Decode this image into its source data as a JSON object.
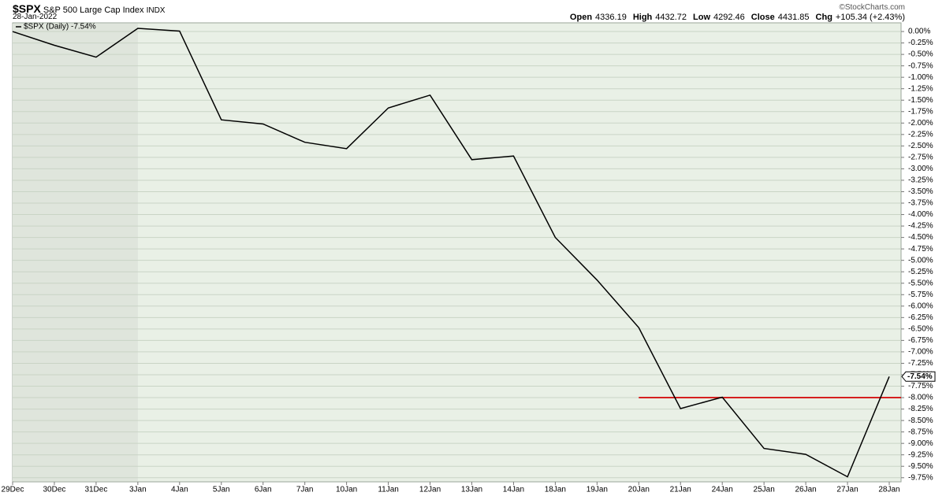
{
  "chart_data": {
    "type": "line",
    "symbol": "$SPX",
    "title": "S&P 500 Large Cap Index",
    "exchange": "INDX",
    "date": "28-Jan-2022",
    "credit": "©StockCharts.com",
    "quote": [
      {
        "label": "Open",
        "value": "4336.19"
      },
      {
        "label": "High",
        "value": "4432.72"
      },
      {
        "label": "Low",
        "value": "4292.46"
      },
      {
        "label": "Close",
        "value": "4431.85"
      },
      {
        "label": "Chg",
        "value": "+105.34 (+2.43%)"
      }
    ],
    "categories": [
      "29Dec",
      "30Dec",
      "31Dec",
      "3Jan",
      "4Jan",
      "5Jan",
      "6Jan",
      "7Jan",
      "10Jan",
      "11Jan",
      "12Jan",
      "13Jan",
      "14Jan",
      "18Jan",
      "19Jan",
      "20Jan",
      "21Jan",
      "24Jan",
      "25Jan",
      "26Jan",
      "27Jan",
      "28Jan"
    ],
    "series": [
      {
        "name": "$SPX (Daily) -7.54%",
        "color": "#000000",
        "values": [
          0.0,
          -0.3,
          -0.56,
          0.07,
          0.01,
          -1.93,
          -2.02,
          -2.42,
          -2.56,
          -1.67,
          -1.39,
          -2.8,
          -2.72,
          -4.5,
          -5.43,
          -6.47,
          -8.24,
          -7.99,
          -9.11,
          -9.24,
          -9.73,
          -7.54
        ],
        "last_value_label": "-7.54%"
      }
    ],
    "hline": {
      "value": -8.0,
      "color": "#d62020"
    },
    "ylim": [
      -9.84,
      0.19
    ],
    "yticks": [
      {
        "value": 0,
        "label": "0.00%"
      },
      {
        "value": -0.25,
        "label": "-0.25%"
      },
      {
        "value": -0.5,
        "label": "-0.50%"
      },
      {
        "value": -0.75,
        "label": "-0.75%"
      },
      {
        "value": -1,
        "label": "-1.00%"
      },
      {
        "value": -1.25,
        "label": "-1.25%"
      },
      {
        "value": -1.5,
        "label": "-1.50%"
      },
      {
        "value": -1.75,
        "label": "-1.75%"
      },
      {
        "value": -2,
        "label": "-2.00%"
      },
      {
        "value": -2.25,
        "label": "-2.25%"
      },
      {
        "value": -2.5,
        "label": "-2.50%"
      },
      {
        "value": -2.75,
        "label": "-2.75%"
      },
      {
        "value": -3,
        "label": "-3.00%"
      },
      {
        "value": -3.25,
        "label": "-3.25%"
      },
      {
        "value": -3.5,
        "label": "-3.50%"
      },
      {
        "value": -3.75,
        "label": "-3.75%"
      },
      {
        "value": -4,
        "label": "-4.00%"
      },
      {
        "value": -4.25,
        "label": "-4.25%"
      },
      {
        "value": -4.5,
        "label": "-4.50%"
      },
      {
        "value": -4.75,
        "label": "-4.75%"
      },
      {
        "value": -5,
        "label": "-5.00%"
      },
      {
        "value": -5.25,
        "label": "-5.25%"
      },
      {
        "value": -5.5,
        "label": "-5.50%"
      },
      {
        "value": -5.75,
        "label": "-5.75%"
      },
      {
        "value": -6,
        "label": "-6.00%"
      },
      {
        "value": -6.25,
        "label": "-6.25%"
      },
      {
        "value": -6.5,
        "label": "-6.50%"
      },
      {
        "value": -6.75,
        "label": "-6.75%"
      },
      {
        "value": -7,
        "label": "-7.00%"
      },
      {
        "value": -7.25,
        "label": "-7.25%"
      },
      {
        "value": -7.5,
        "label": "-7.50%"
      },
      {
        "value": -7.75,
        "label": "-7.75%"
      },
      {
        "value": -8,
        "label": "-8.00%"
      },
      {
        "value": -8.25,
        "label": "-8.25%"
      },
      {
        "value": -8.5,
        "label": "-8.50%"
      },
      {
        "value": -8.75,
        "label": "-8.75%"
      },
      {
        "value": -9,
        "label": "-9.00%"
      },
      {
        "value": -9.25,
        "label": "-9.25%"
      },
      {
        "value": -9.5,
        "label": "-9.50%"
      },
      {
        "value": -9.75,
        "label": "-9.75%"
      }
    ],
    "grid": true
  }
}
